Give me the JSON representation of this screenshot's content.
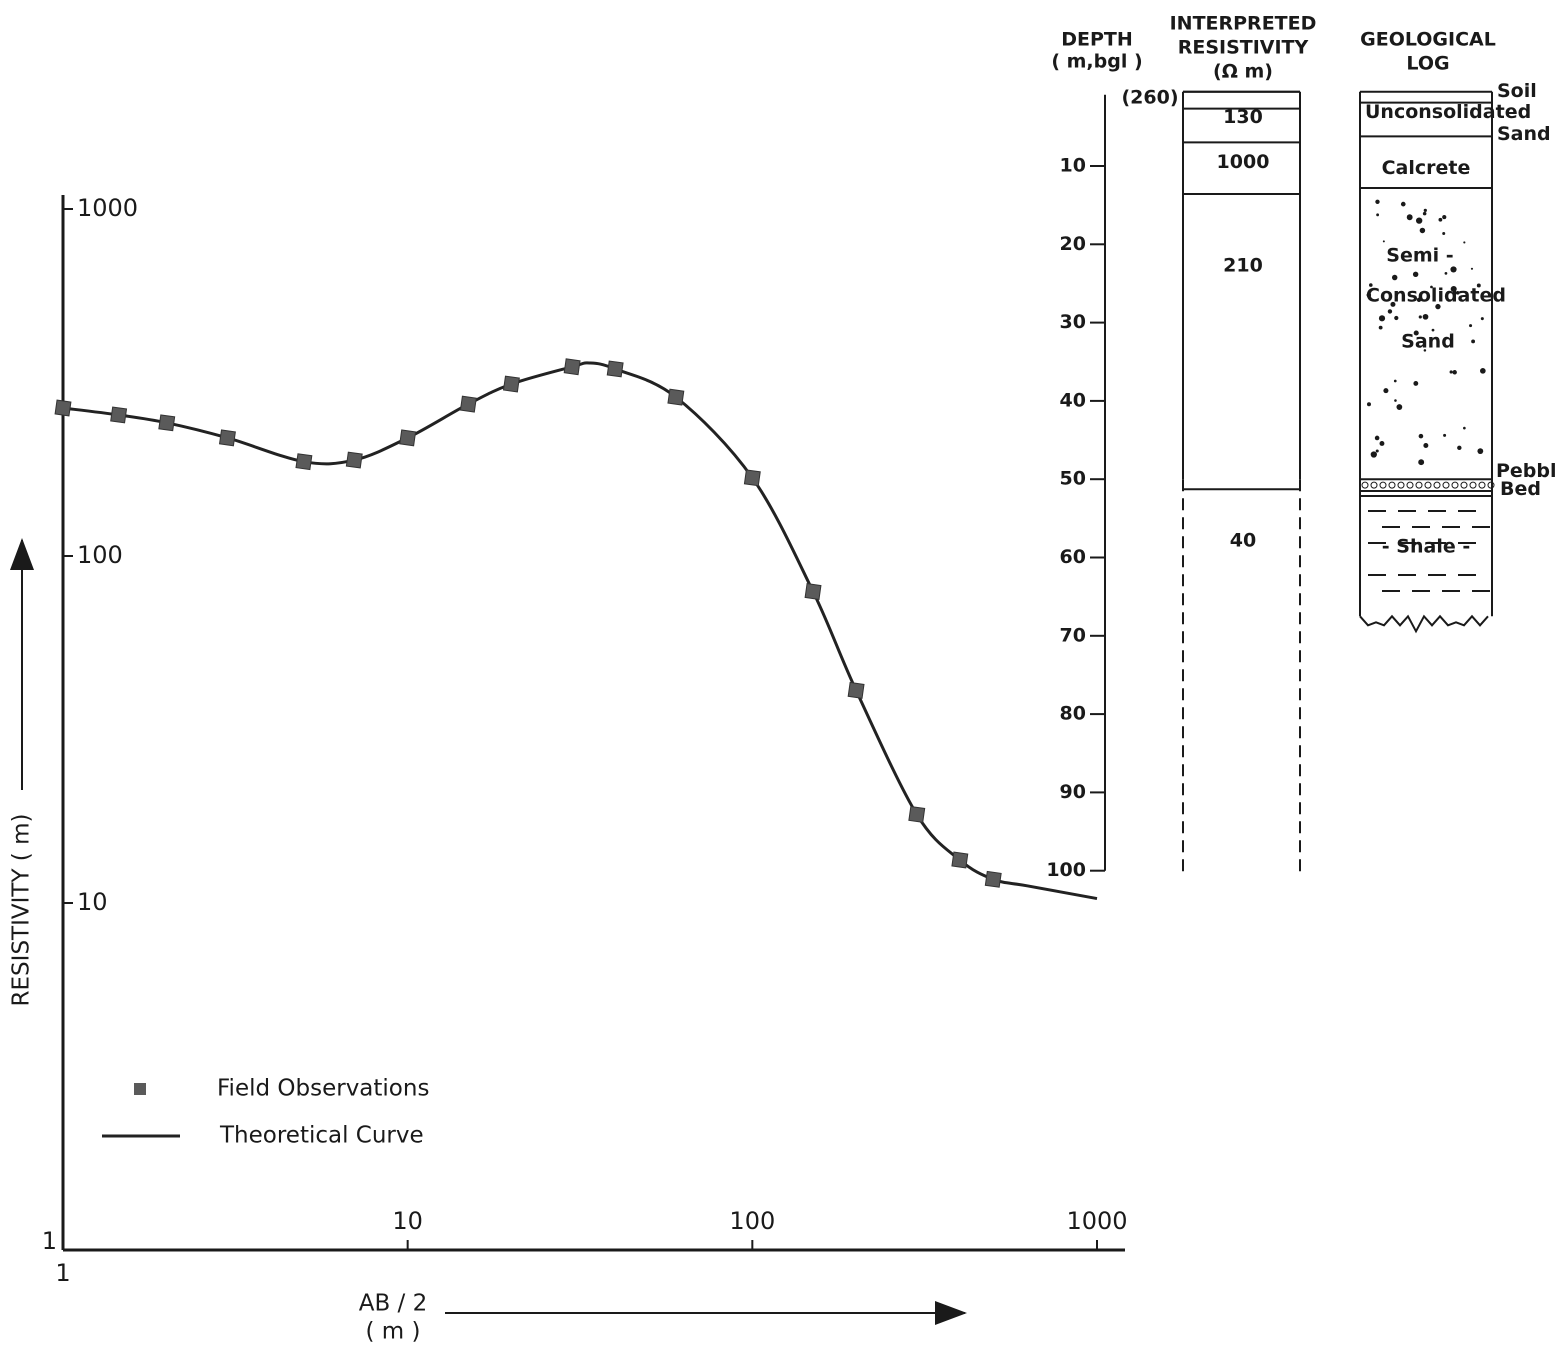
{
  "chart_data": [
    {
      "type": "line",
      "y_label": "RESISTIVITY ( m)",
      "x_label": [
        "AB / 2",
        "( m )"
      ],
      "xlog": true,
      "ylog": true,
      "xlim": [
        1,
        1000
      ],
      "ylim": [
        1,
        1000
      ],
      "xticks": [
        1,
        10,
        100,
        1000
      ],
      "yticks": [
        1,
        10,
        100,
        1000
      ],
      "series": [
        {
          "name": "Field Observations",
          "style": "markers",
          "color": "#5a5a5a",
          "x": [
            1,
            1.45,
            2,
            3,
            5,
            7,
            10,
            15,
            20,
            30,
            40,
            60,
            100,
            150,
            200,
            300,
            400,
            500
          ],
          "values": [
            267,
            255,
            242,
            219,
            187,
            189,
            219,
            274,
            313,
            351,
            346,
            287,
            168,
            79,
            41,
            18,
            13.3,
            11.7
          ]
        },
        {
          "name": "Theoretical Curve",
          "style": "line",
          "color": "#222222",
          "x": [
            1,
            1.45,
            2,
            3,
            5,
            7,
            10,
            15,
            20,
            30,
            33.7,
            40,
            60,
            100,
            150,
            200,
            300,
            400,
            500,
            630,
            1000
          ],
          "values": [
            267,
            255,
            242,
            219,
            187,
            189,
            219,
            274,
            313,
            351,
            360,
            346,
            287,
            168,
            79,
            41,
            18,
            13.3,
            11.7,
            11.2,
            10.3
          ]
        }
      ]
    },
    {
      "type": "strata",
      "depth_label": [
        "DEPTH",
        "( m,bgl )"
      ],
      "ylim": [
        0,
        100
      ],
      "yticks": [
        10,
        20,
        30,
        40,
        50,
        60,
        70,
        80,
        90,
        100
      ],
      "resistivity_label": [
        "INTERPRETED",
        "RESISTIVITY",
        "(Ω m)"
      ],
      "resistivity_layers": {
        "tops": [
          0,
          1.4,
          5.7,
          12.3,
          50
        ],
        "values": [
          260,
          130,
          1000,
          210,
          40
        ],
        "value_labels": [
          "(260)",
          "130",
          "1000",
          "210",
          "40"
        ]
      },
      "log_label": [
        "GEOLOGICAL",
        "LOG"
      ],
      "log_layers": [
        {
          "top": 0,
          "bottom": 1.4,
          "label": [
            "Soil"
          ]
        },
        {
          "top": 1.4,
          "bottom": 5.7,
          "label": [
            "Unconsolidated",
            "Sand"
          ]
        },
        {
          "top": 5.7,
          "bottom": 12.3,
          "label": [
            "Calcrete"
          ]
        },
        {
          "top": 12.3,
          "bottom": 49.5,
          "label": [
            "Semi -",
            "Consolidated",
            "Sand"
          ]
        },
        {
          "top": 49.5,
          "bottom": 51,
          "label": [
            "Pebbl",
            "Bed"
          ]
        },
        {
          "top": 51,
          "bottom": 67,
          "label": [
            "- Shale -"
          ]
        }
      ]
    }
  ]
}
